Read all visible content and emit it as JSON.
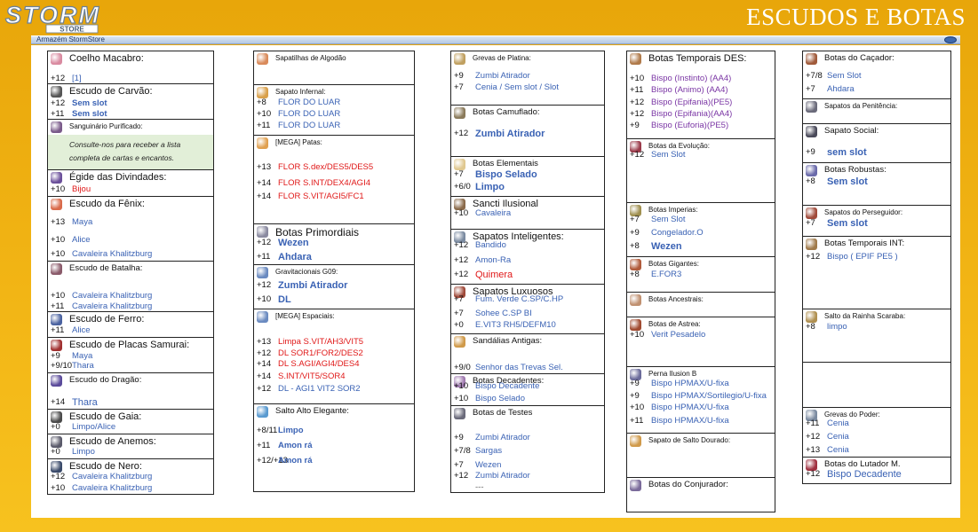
{
  "header": {
    "title": "ESCUDOS E BOTAS",
    "logo_text": "STORM",
    "logo_sub": "STORE"
  },
  "window": {
    "title": "Armazém StormStore"
  },
  "columns": [
    [
      {
        "title": "Coelho Macabro:",
        "size": "",
        "h": 36,
        "icon": "#d98aa0",
        "lines": [
          {
            "y": 25,
            "p": "+12",
            "v": "[1]",
            "c": "n"
          }
        ]
      },
      {
        "title": "Escudo de Carvão:",
        "size": "",
        "h": 40,
        "icon": "#555555",
        "lines": [
          {
            "y": 16,
            "p": "+12",
            "v": "Sem slot"
          },
          {
            "y": 28,
            "p": "+11",
            "v": "Sem slot"
          }
        ]
      },
      {
        "title": "Sanguinário Purificado:",
        "size": "s",
        "h": 57,
        "icon": "#7a5a8a",
        "note": [
          "Consulte-nos para receber a lista",
          "completa de cartas e encantos."
        ],
        "lines": []
      },
      {
        "title": "Égide das Divindades:",
        "size": "",
        "h": 30,
        "icon": "#6b4f9a",
        "lines": [
          {
            "y": 16,
            "p": "+10",
            "v": "Bijou",
            "c": "red n"
          }
        ]
      },
      {
        "title": "Escudo da Fênix:",
        "size": "",
        "h": 73,
        "icon": "#d96a4a",
        "lines": [
          {
            "y": 23,
            "p": "+13",
            "v": "Maya",
            "c": "n"
          },
          {
            "y": 43,
            "p": "+10",
            "v": "Alice",
            "c": "n"
          },
          {
            "y": 59,
            "p": "+10",
            "v": "Cavaleira Khalitzburg",
            "c": "n"
          }
        ]
      },
      {
        "title": "Escudo de Batalha:",
        "size": "m",
        "h": 57,
        "icon": "#8a5a6a",
        "lines": [
          {
            "y": 33,
            "p": "+10",
            "v": "Cavaleira Khalitzburg",
            "c": "n"
          },
          {
            "y": 45,
            "p": "+11",
            "v": "Cavaleira Khalitzburg",
            "c": "n"
          }
        ]
      },
      {
        "title": "Escudo de Ferro:",
        "size": "",
        "h": 29,
        "icon": "#4a62a0",
        "lines": [
          {
            "y": 15,
            "p": "+11",
            "v": "Alice",
            "c": "n"
          }
        ]
      },
      {
        "title": "Escudo de Placas Samurai:",
        "size": "",
        "h": 40,
        "icon": "#a03030",
        "lines": [
          {
            "y": 15,
            "p": "+9",
            "v": "Maya",
            "c": "n"
          },
          {
            "y": 26,
            "p": "+9/10",
            "v": "Thara",
            "c": "n"
          }
        ]
      },
      {
        "title": "Escudo do Dragão:",
        "size": "m",
        "h": 41,
        "icon": "#5a4a9a",
        "lines": [
          {
            "y": 27,
            "p": "+14",
            "v": "Thara",
            "c": "n big"
          }
        ]
      },
      {
        "title": "Escudo de Gaia:",
        "size": "",
        "h": 28,
        "icon": "#4a4a4a",
        "lines": [
          {
            "y": 14,
            "p": "+0",
            "v": "Limpo/Alice",
            "c": "n"
          }
        ]
      },
      {
        "title": "Escudo de Anemos:",
        "size": "",
        "h": 28,
        "icon": "#5a5a6a",
        "lines": [
          {
            "y": 14,
            "p": "+0",
            "v": "Limpo",
            "c": "n"
          }
        ]
      },
      {
        "title": "Escudo de Nero:",
        "size": "",
        "h": 40,
        "icon": "#3a4a6a",
        "lines": [
          {
            "y": 14,
            "p": "+12",
            "v": "Cavaleira Khalitzburg",
            "c": "n"
          },
          {
            "y": 27,
            "p": "+10",
            "v": "Cavaleira Khalitzburg",
            "c": "n"
          }
        ]
      }
    ],
    [
      {
        "title": "Sapatilhas de Algodão",
        "size": "s",
        "h": 37,
        "icon": "#d98a5a",
        "lines": []
      },
      {
        "title": "Sapato Infernal:",
        "size": "s",
        "h": 57,
        "icon": "#d9a04a",
        "lines": [
          {
            "y": 14,
            "p": "+8",
            "v": "FLOR DO LUAR",
            "c": "n"
          },
          {
            "y": 27,
            "p": "+10",
            "v": "FLOR DO LUAR",
            "c": "n"
          },
          {
            "y": 40,
            "p": "+11",
            "v": "FLOR DO LUAR",
            "c": "n"
          }
        ]
      },
      {
        "title": "[MEGA] Patas:",
        "size": "s",
        "h": 100,
        "icon": "#e0a050",
        "lines": [
          {
            "y": 30,
            "p": "+13",
            "v": "FLOR  S.dex/DES5/DES5",
            "c": "red n"
          },
          {
            "y": 48,
            "p": "+14",
            "v": "FLOR  S.INT/DEX4/AGI4",
            "c": "red n"
          },
          {
            "y": 63,
            "p": "+14",
            "v": "FLOR  S.VIT/AGI5/FC1",
            "c": "red n"
          }
        ]
      },
      {
        "title": "Botas Primordiais",
        "size": "l",
        "h": 46,
        "icon": "#8a8aa0",
        "lines": [
          {
            "y": 15,
            "p": "+12",
            "v": "Wezen",
            "c": "big"
          },
          {
            "y": 31,
            "p": "+11",
            "v": "Ahdara",
            "c": "big"
          }
        ]
      },
      {
        "title": "Gravitacionais G09:",
        "size": "s",
        "h": 50,
        "icon": "#6a8ac0",
        "lines": [
          {
            "y": 17,
            "p": "+12",
            "v": "Zumbi Atirador",
            "c": "big"
          },
          {
            "y": 33,
            "p": "+10",
            "v": "DL",
            "c": "big"
          }
        ]
      },
      {
        "title": "[MEGA] Espaciais:",
        "size": "s",
        "h": 107,
        "icon": "#6a8ac0",
        "lines": [
          {
            "y": 31,
            "p": "+13",
            "v": "Limpa S.VIT/AH3/VIT5",
            "c": "red n"
          },
          {
            "y": 44,
            "p": "+12",
            "v": "DL SOR1/FOR2/DES2",
            "c": "red n"
          },
          {
            "y": 56,
            "p": "+14",
            "v": "DL S.AGI/AGI4/DES4",
            "c": "red n"
          },
          {
            "y": 70,
            "p": "+14",
            "v": "S.INT/VIT5/SOR4",
            "c": "red n"
          },
          {
            "y": 84,
            "p": "+12",
            "v": "DL - AGI1 VIT2 SOR2",
            "c": "n"
          }
        ]
      },
      {
        "title": "Salto Alto Elegante:",
        "size": "m",
        "h": 99,
        "icon": "#5a9ad0",
        "lines": [
          {
            "y": 24,
            "p": "+8/11",
            "v": "Limpo"
          },
          {
            "y": 41,
            "p": "+11",
            "v": "Amon rá"
          },
          {
            "y": 58,
            "p": "+12/+13",
            "v": "Amon rá"
          }
        ]
      }
    ],
    [
      {
        "title": "Grevas de Platina:",
        "size": "s",
        "h": 60,
        "icon": "#c0a060",
        "lines": [
          {
            "y": 22,
            "p": "+9",
            "v": "Zumbi Atirador",
            "c": "n"
          },
          {
            "y": 35,
            "p": "+7",
            "v": "Cenia / Sem slot / Slot",
            "c": "n"
          }
        ]
      },
      {
        "title": "Botas Camuflado:",
        "size": "m",
        "h": 58,
        "icon": "#8a7a5a",
        "lines": [
          {
            "y": 26,
            "p": "+12",
            "v": "Zumbi Atirador",
            "c": "big"
          }
        ]
      },
      {
        "title": "Botas Elementais",
        "size": "m",
        "h": 45,
        "icon": "#e0c890",
        "lines": [
          {
            "y": 14,
            "p": "+7",
            "v": "Bispo Selado",
            "c": "big"
          },
          {
            "y": 28,
            "p": "+6/0",
            "v": "Limpo",
            "c": "big"
          }
        ]
      },
      {
        "title": "Sancti Ilusional",
        "size": "",
        "h": 37,
        "icon": "#8a6a4a",
        "lines": [
          {
            "y": 13,
            "p": "+10",
            "v": "Cavaleira",
            "c": "n"
          }
        ]
      },
      {
        "title": "Sapatos Inteligentes:",
        "size": "",
        "h": 62,
        "icon": "#7a8aa0",
        "lines": [
          {
            "y": 12,
            "p": "+12",
            "v": "Bandido",
            "c": "n"
          },
          {
            "y": 29,
            "p": "+12",
            "v": "Amon-Ra",
            "c": "n"
          },
          {
            "y": 45,
            "p": "+12",
            "v": "Quimera",
            "c": "red n big"
          }
        ]
      },
      {
        "title": "Sapatos Luxuosos",
        "size": "",
        "h": 56,
        "icon": "#a04a3a",
        "lines": [
          {
            "y": 11,
            "p": "+7",
            "v": "Fum. Verde C.SP/C.HP",
            "c": "n"
          },
          {
            "y": 27,
            "p": "+7",
            "v": "Sohee C.SP BI",
            "c": "n"
          },
          {
            "y": 40,
            "p": "+0",
            "v": "E.VIT3 RH5/DEFM10",
            "c": "n"
          }
        ]
      },
      {
        "title": "Sandálias Antigas:",
        "size": "m",
        "h": 45,
        "icon": "#d09a4a",
        "lines": [
          {
            "y": 32,
            "p": "+9/0",
            "v": "Senhor das Trevas Sel.",
            "c": "n"
          }
        ]
      },
      {
        "title": "Botas Decadentes:",
        "size": "m",
        "h": 36,
        "icon": "#a07ab0",
        "lines": [
          {
            "y": 8,
            "p": "+10",
            "v": "Bispo Decadente",
            "c": "n"
          },
          {
            "y": 22,
            "p": "+10",
            "v": "Bispo Selado",
            "c": "n"
          }
        ]
      },
      {
        "title": "Botas de Testes",
        "size": "m",
        "h": 98,
        "icon": "#6a6a7a",
        "lines": [
          {
            "y": 30,
            "p": "+9",
            "v": "Zumbi Atirador",
            "c": "n"
          },
          {
            "y": 45,
            "p": "+7/8",
            "v": "Sargas",
            "c": "n"
          },
          {
            "y": 61,
            "p": "+7",
            "v": "Wezen",
            "c": "n"
          },
          {
            "y": 73,
            "p": "+12",
            "v": "Zumbi Atirador",
            "c": "n"
          },
          {
            "y": 86,
            "p": "",
            "v": "---",
            "c": "grey n"
          }
        ]
      }
    ],
    [
      {
        "title": "Botas Temporais DES:",
        "size": "",
        "h": 98,
        "icon": "#b07a4a",
        "lines": [
          {
            "y": 25,
            "p": "+10",
            "v": "Bispo          (Instinto) (AA4)",
            "c": "purp n"
          },
          {
            "y": 38,
            "p": "+11",
            "v": "Bispo          (Animo) (AA4)",
            "c": "purp n"
          },
          {
            "y": 52,
            "p": "+12",
            "v": "Bispo          (Epifania)(PE5)",
            "c": "purp n"
          },
          {
            "y": 65,
            "p": "+12",
            "v": "Bispo          (Epifania)(AA4)",
            "c": "purp n"
          },
          {
            "y": 78,
            "p": "+9",
            "v": "Bispo          (Euforia)(PE5)",
            "c": "purp n"
          }
        ]
      },
      {
        "title": "Botas da Evolução:",
        "size": "s",
        "h": 72,
        "icon": "#9a3a4a",
        "lines": [
          {
            "y": 12,
            "p": "+12",
            "v": "Sem Slot",
            "c": "n"
          }
        ]
      },
      {
        "title": "Botas Imperias:",
        "size": "s",
        "h": 61,
        "icon": "#a09050",
        "lines": [
          {
            "y": 13,
            "p": "+7",
            "v": "Sem Slot",
            "c": "n"
          },
          {
            "y": 28,
            "p": "+9",
            "v": "Congelador.O",
            "c": "n"
          },
          {
            "y": 43,
            "p": "+8",
            "v": "Wezen",
            "c": "big"
          }
        ]
      },
      {
        "title": "Botas Gigantes:",
        "size": "s",
        "h": 40,
        "icon": "#b05a3a",
        "lines": [
          {
            "y": 14,
            "p": "+8",
            "v": "E.FOR3",
            "c": "n"
          }
        ]
      },
      {
        "title": "Botas Ancestrais:",
        "size": "s",
        "h": 28,
        "icon": "#c09070",
        "lines": []
      },
      {
        "title": "Botas de Astrea:",
        "size": "s",
        "h": 56,
        "icon": "#a04a30",
        "lines": [
          {
            "y": 14,
            "p": "+10",
            "v": "Verit Pesadelo",
            "c": "n"
          }
        ]
      },
      {
        "title": "Perna Ilusion B",
        "size": "s",
        "h": 75,
        "icon": "#6a6a9a",
        "lines": [
          {
            "y": 13,
            "p": "+9",
            "v": "Bispo HPMAX/U-fixa",
            "c": "n"
          },
          {
            "y": 27,
            "p": "+9",
            "v": "Bispo HPMAX/Sortilegio/U-fixa",
            "c": "n"
          },
          {
            "y": 40,
            "p": "+10",
            "v": "Bispo HPMAX/U-fixa",
            "c": "n"
          },
          {
            "y": 55,
            "p": "+11",
            "v": "Bispo HPMAX/U-fixa",
            "c": "n"
          }
        ]
      },
      {
        "title": "Sapato de Salto Dourado:",
        "size": "s",
        "h": 50,
        "icon": "#d09a4a",
        "lines": []
      },
      {
        "title": "Botas do Conjurador:",
        "size": "m",
        "h": 39,
        "icon": "#7a6a9a",
        "lines": []
      }
    ],
    [
      {
        "title": "Botas do Caçador:",
        "size": "m",
        "h": 53,
        "icon": "#a05a3a",
        "lines": [
          {
            "y": 22,
            "p": "+7/8",
            "v": "Sem Slot",
            "c": "n"
          },
          {
            "y": 37,
            "p": "+7",
            "v": "Ahdara",
            "c": "n"
          }
        ]
      },
      {
        "title": "Sapatos da Penitência:",
        "size": "s",
        "h": 28,
        "icon": "#6a6a7a",
        "lines": []
      },
      {
        "title": "Sapato Social:",
        "size": "m",
        "h": 44,
        "icon": "#4a4a5a",
        "lines": [
          {
            "y": 26,
            "p": "+9",
            "v": "sem slot",
            "c": "big"
          }
        ]
      },
      {
        "title": "Botas Robustas:",
        "size": "m",
        "h": 48,
        "icon": "#6a6aaa",
        "lines": [
          {
            "y": 15,
            "p": "+8",
            "v": "Sem slot",
            "c": "big"
          }
        ]
      },
      {
        "title": "Sapatos do Perseguidor:",
        "size": "s",
        "h": 35,
        "icon": "#a04a3a",
        "lines": [
          {
            "y": 14,
            "p": "+7",
            "v": "Sem slot",
            "c": "big"
          }
        ]
      },
      {
        "title": "Botas Temporais INT:",
        "size": "m",
        "h": 82,
        "icon": "#a07a4a",
        "lines": [
          {
            "y": 17,
            "p": "+12",
            "v": "                         Bispo ( EPIF PE5 )",
            "c": "n"
          }
        ]
      },
      {
        "title": "Salto da Rainha Scaraba:",
        "size": "s",
        "h": 60,
        "icon": "#b09050",
        "lines": [
          {
            "y": 14,
            "p": "+8",
            "v": "                                         limpo",
            "c": "n"
          }
        ]
      },
      {
        "title": "",
        "size": "s",
        "h": 51,
        "icon": "",
        "lines": []
      },
      {
        "title": "Grevas do Poder:",
        "size": "s",
        "h": 56,
        "icon": "#7a8aa0",
        "lines": [
          {
            "y": 12,
            "p": "+11",
            "v": "Cenia",
            "c": "n"
          },
          {
            "y": 27,
            "p": "+12",
            "v": "Cenia",
            "c": "n"
          },
          {
            "y": 42,
            "p": "+13",
            "v": "Cenia",
            "c": "n"
          }
        ]
      },
      {
        "title": "Botas do Lutador M.",
        "size": "m",
        "h": 30,
        "icon": "#a03040",
        "lines": [
          {
            "y": 13,
            "p": "+12",
            "v": "Bispo Decadente",
            "c": "n big"
          }
        ]
      }
    ]
  ]
}
